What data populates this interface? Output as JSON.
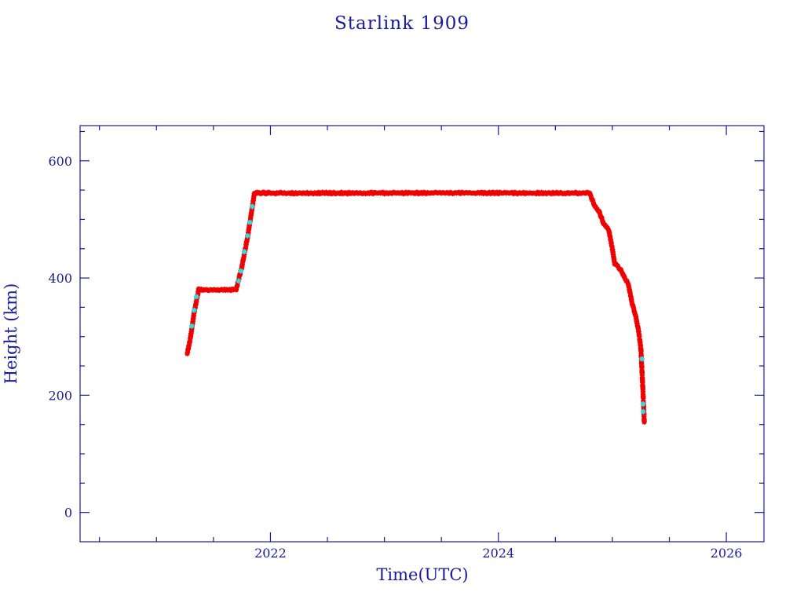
{
  "chart_data": {
    "type": "scatter",
    "title": "Starlink 1909",
    "xlabel": "Time(UTC)",
    "ylabel": "Height (km)",
    "xlim": [
      2020.33,
      2026.33
    ],
    "ylim": [
      -50,
      660
    ],
    "x_ticks": [
      2022,
      2024,
      2026
    ],
    "x_tick_labels": [
      "2022",
      "2024",
      "2026"
    ],
    "x_minor_ticks": [
      2020.5,
      2021,
      2021.5,
      2022.5,
      2023,
      2023.5,
      2024.5,
      2025,
      2025.5
    ],
    "y_ticks": [
      0,
      200,
      400,
      600
    ],
    "y_tick_labels": [
      "0",
      "200",
      "400",
      "600"
    ],
    "y_minor_ticks": [
      50,
      100,
      150,
      250,
      300,
      350,
      450,
      500,
      550,
      650
    ],
    "grid": false,
    "colors": {
      "axes": "#1a1a9c",
      "primary": "#ee0000",
      "secondary": "#33dddd"
    },
    "series": [
      {
        "color": "#ee0000",
        "marker": "star",
        "segments": [
          [
            [
              2021.27,
              270
            ],
            [
              2021.3,
              300
            ],
            [
              2021.33,
              340
            ],
            [
              2021.37,
              380
            ]
          ],
          [
            [
              2021.37,
              380
            ],
            [
              2021.45,
              380
            ],
            [
              2021.55,
              380
            ],
            [
              2021.63,
              380
            ],
            [
              2021.7,
              380
            ]
          ],
          [
            [
              2021.7,
              380
            ],
            [
              2021.75,
              420
            ],
            [
              2021.8,
              470
            ],
            [
              2021.84,
              520
            ],
            [
              2021.86,
              545
            ]
          ],
          [
            [
              2021.86,
              545
            ],
            [
              2022.0,
              545
            ],
            [
              2022.5,
              545
            ],
            [
              2023.0,
              545
            ],
            [
              2023.5,
              545
            ],
            [
              2024.0,
              545
            ],
            [
              2024.5,
              545
            ],
            [
              2024.8,
              545
            ]
          ],
          [
            [
              2024.8,
              545
            ],
            [
              2024.84,
              525
            ],
            [
              2024.88,
              515
            ],
            [
              2024.92,
              495
            ],
            [
              2024.97,
              480
            ],
            [
              2025.0,
              450
            ],
            [
              2025.02,
              425
            ],
            [
              2025.07,
              415
            ],
            [
              2025.11,
              400
            ],
            [
              2025.14,
              390
            ],
            [
              2025.17,
              360
            ],
            [
              2025.21,
              330
            ],
            [
              2025.23,
              310
            ],
            [
              2025.25,
              280
            ],
            [
              2025.26,
              240
            ],
            [
              2025.27,
              200
            ],
            [
              2025.28,
              155
            ]
          ]
        ]
      },
      {
        "color": "#33dddd",
        "marker": "star",
        "points": [
          [
            2021.31,
            318
          ],
          [
            2021.33,
            345
          ],
          [
            2021.35,
            368
          ],
          [
            2021.72,
            395
          ],
          [
            2021.74,
            412
          ],
          [
            2021.77,
            445
          ],
          [
            2021.8,
            472
          ],
          [
            2021.82,
            495
          ],
          [
            2021.84,
            522
          ],
          [
            2025.26,
            262
          ],
          [
            2025.27,
            185
          ],
          [
            2025.27,
            172
          ]
        ]
      }
    ]
  }
}
